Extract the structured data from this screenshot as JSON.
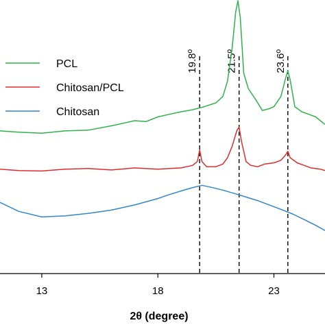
{
  "chart_data": {
    "type": "line",
    "xlabel": "2θ (degree)",
    "ylabel": "",
    "xlim": [
      11.2,
      25.2
    ],
    "ylim": [
      0,
      100
    ],
    "xticks": [
      13,
      18,
      23
    ],
    "xtick_labels": [
      "13",
      "18",
      "23"
    ],
    "grid": false,
    "legend_position": "top-left",
    "annotations": [
      {
        "x": 19.8,
        "label": "19.8º"
      },
      {
        "x": 21.5,
        "label": "21.5º"
      },
      {
        "x": 23.6,
        "label": "23.6º"
      }
    ],
    "series": [
      {
        "name": "PCL",
        "color": "#2db34a",
        "x": [
          11.2,
          12.0,
          13.0,
          14.0,
          15.0,
          16.0,
          16.5,
          17.0,
          17.5,
          18.0,
          18.5,
          19.0,
          19.5,
          20.0,
          20.5,
          20.8,
          21.0,
          21.2,
          21.35,
          21.45,
          21.55,
          21.7,
          21.9,
          22.2,
          22.5,
          22.8,
          23.0,
          23.3,
          23.5,
          23.6,
          23.7,
          23.9,
          24.2,
          24.5,
          24.8,
          25.0,
          25.2
        ],
        "values": [
          50.5,
          50.0,
          49.6,
          50.5,
          50.8,
          52.5,
          53.5,
          54.5,
          54.2,
          56.0,
          57.0,
          58.0,
          58.8,
          60.0,
          61.5,
          64.0,
          70.0,
          83.0,
          97.0,
          101.5,
          95.0,
          73.0,
          67.0,
          63.0,
          58.5,
          59.2,
          60.0,
          64.0,
          71.0,
          74.0,
          70.5,
          60.0,
          58.0,
          57.0,
          56.0,
          54.5,
          53.0
        ]
      },
      {
        "name": "Chitosan/PCL",
        "color": "#e02b2b",
        "x": [
          11.2,
          12.0,
          13.0,
          14.0,
          15.0,
          16.0,
          17.0,
          18.0,
          18.5,
          19.0,
          19.5,
          19.7,
          19.8,
          19.9,
          20.1,
          20.5,
          20.8,
          21.0,
          21.2,
          21.4,
          21.5,
          21.6,
          21.8,
          22.0,
          22.3,
          22.6,
          23.0,
          23.3,
          23.5,
          23.6,
          23.7,
          24.0,
          24.3,
          24.6,
          25.0,
          25.2
        ],
        "values": [
          35.5,
          35.0,
          34.8,
          35.5,
          35.8,
          35.2,
          36.0,
          35.5,
          35.8,
          36.0,
          37.0,
          38.5,
          43.0,
          38.5,
          36.5,
          36.5,
          37.5,
          40.0,
          44.5,
          50.5,
          52.0,
          46.5,
          38.5,
          37.0,
          36.5,
          37.5,
          38.0,
          39.0,
          41.0,
          42.5,
          40.0,
          38.0,
          37.0,
          36.0,
          35.5,
          35.0
        ]
      },
      {
        "name": "Chitosan",
        "color": "#2f86d1",
        "x": [
          11.2,
          12.0,
          13.0,
          14.0,
          15.0,
          16.0,
          17.0,
          18.0,
          18.5,
          19.0,
          19.5,
          19.9,
          20.3,
          20.8,
          21.3,
          21.8,
          22.3,
          22.8,
          23.3,
          23.8,
          24.3,
          24.8,
          25.2
        ],
        "values": [
          22.5,
          19.0,
          16.8,
          17.2,
          18.2,
          19.5,
          21.5,
          24.0,
          25.6,
          27.0,
          28.3,
          29.2,
          28.4,
          27.3,
          26.0,
          24.6,
          23.2,
          21.5,
          19.8,
          18.0,
          15.8,
          13.5,
          11.5
        ]
      }
    ]
  },
  "legend": {
    "items": [
      "PCL",
      "Chitosan/PCL",
      "Chitosan"
    ]
  }
}
